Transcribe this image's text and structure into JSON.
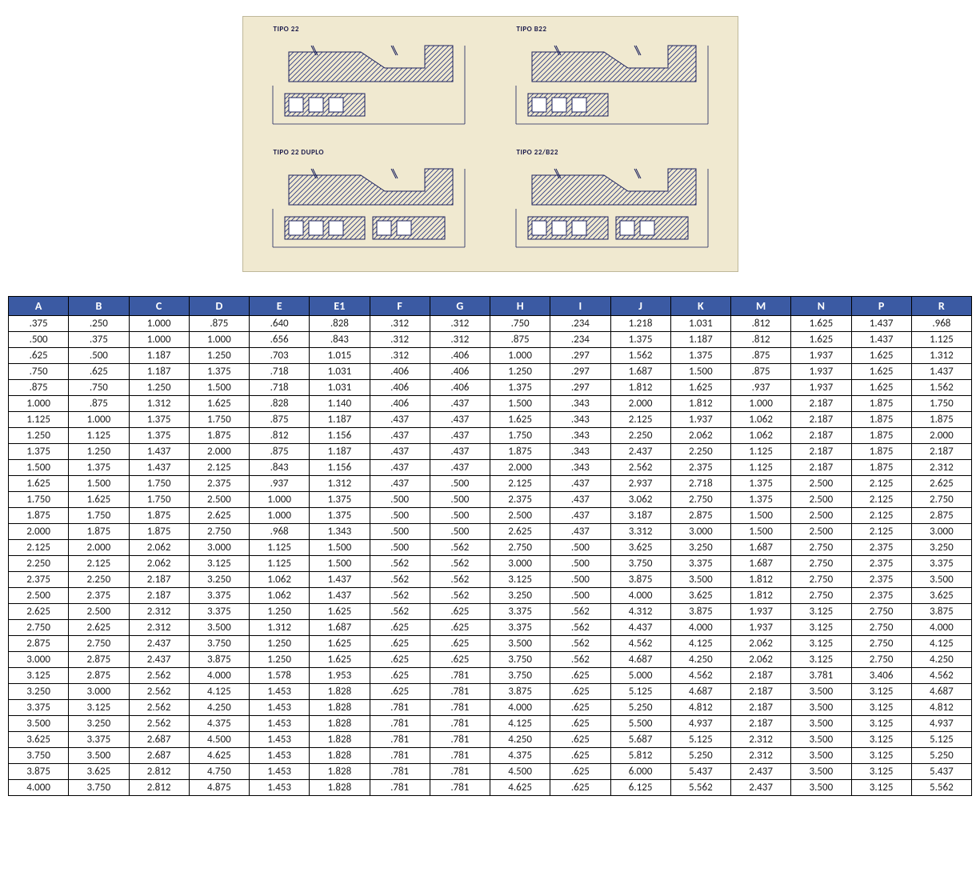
{
  "diagrams": {
    "labels": [
      "TIPO 22",
      "TIPO B22",
      "TIPO 22 DUPLO",
      "TIPO 22/B22"
    ],
    "background": "#f0e9d0",
    "stroke": "#1b215c",
    "hatch": "#2a3680"
  },
  "table": {
    "type": "table",
    "header_background": "#3b5aa3",
    "header_text_color": "#ffffff",
    "border_color": "#000000",
    "cell_background": "#ffffff",
    "font_size": 13,
    "header_font_size": 14,
    "columns": [
      "A",
      "B",
      "C",
      "D",
      "E",
      "E1",
      "F",
      "G",
      "H",
      "I",
      "J",
      "K",
      "M",
      "N",
      "P",
      "R"
    ],
    "rows": [
      [
        ".375",
        ".250",
        "1.000",
        ".875",
        ".640",
        ".828",
        ".312",
        ".312",
        ".750",
        ".234",
        "1.218",
        "1.031",
        ".812",
        "1.625",
        "1.437",
        ".968"
      ],
      [
        ".500",
        ".375",
        "1.000",
        "1.000",
        ".656",
        ".843",
        ".312",
        ".312",
        ".875",
        ".234",
        "1.375",
        "1.187",
        ".812",
        "1.625",
        "1.437",
        "1.125"
      ],
      [
        ".625",
        ".500",
        "1.187",
        "1.250",
        ".703",
        "1.015",
        ".312",
        ".406",
        "1.000",
        ".297",
        "1.562",
        "1.375",
        ".875",
        "1.937",
        "1.625",
        "1.312"
      ],
      [
        ".750",
        ".625",
        "1.187",
        "1.375",
        ".718",
        "1.031",
        ".406",
        ".406",
        "1.250",
        ".297",
        "1.687",
        "1.500",
        ".875",
        "1.937",
        "1.625",
        "1.437"
      ],
      [
        ".875",
        ".750",
        "1.250",
        "1.500",
        ".718",
        "1.031",
        ".406",
        ".406",
        "1.375",
        ".297",
        "1.812",
        "1.625",
        ".937",
        "1.937",
        "1.625",
        "1.562"
      ],
      [
        "1.000",
        ".875",
        "1.312",
        "1.625",
        ".828",
        "1.140",
        ".406",
        ".437",
        "1.500",
        ".343",
        "2.000",
        "1.812",
        "1.000",
        "2.187",
        "1.875",
        "1.750"
      ],
      [
        "1.125",
        "1.000",
        "1.375",
        "1.750",
        ".875",
        "1.187",
        ".437",
        ".437",
        "1.625",
        ".343",
        "2.125",
        "1.937",
        "1.062",
        "2.187",
        "1.875",
        "1.875"
      ],
      [
        "1.250",
        "1.125",
        "1.375",
        "1.875",
        ".812",
        "1.156",
        ".437",
        ".437",
        "1.750",
        ".343",
        "2.250",
        "2.062",
        "1.062",
        "2.187",
        "1.875",
        "2.000"
      ],
      [
        "1.375",
        "1.250",
        "1.437",
        "2.000",
        ".875",
        "1.187",
        ".437",
        ".437",
        "1.875",
        ".343",
        "2.437",
        "2.250",
        "1.125",
        "2.187",
        "1.875",
        "2.187"
      ],
      [
        "1.500",
        "1.375",
        "1.437",
        "2.125",
        ".843",
        "1.156",
        ".437",
        ".437",
        "2.000",
        ".343",
        "2.562",
        "2.375",
        "1.125",
        "2.187",
        "1.875",
        "2.312"
      ],
      [
        "1.625",
        "1.500",
        "1.750",
        "2.375",
        ".937",
        "1.312",
        ".437",
        ".500",
        "2.125",
        ".437",
        "2.937",
        "2.718",
        "1.375",
        "2.500",
        "2.125",
        "2.625"
      ],
      [
        "1.750",
        "1.625",
        "1.750",
        "2.500",
        "1.000",
        "1.375",
        ".500",
        ".500",
        "2.375",
        ".437",
        "3.062",
        "2.750",
        "1.375",
        "2.500",
        "2.125",
        "2.750"
      ],
      [
        "1.875",
        "1.750",
        "1.875",
        "2.625",
        "1.000",
        "1.375",
        ".500",
        ".500",
        "2.500",
        ".437",
        "3.187",
        "2.875",
        "1.500",
        "2.500",
        "2.125",
        "2.875"
      ],
      [
        "2.000",
        "1.875",
        "1.875",
        "2.750",
        ".968",
        "1.343",
        ".500",
        ".500",
        "2.625",
        ".437",
        "3.312",
        "3.000",
        "1.500",
        "2.500",
        "2.125",
        "3.000"
      ],
      [
        "2.125",
        "2.000",
        "2.062",
        "3.000",
        "1.125",
        "1.500",
        ".500",
        ".562",
        "2.750",
        ".500",
        "3.625",
        "3.250",
        "1.687",
        "2.750",
        "2.375",
        "3.250"
      ],
      [
        "2.250",
        "2.125",
        "2.062",
        "3.125",
        "1.125",
        "1.500",
        ".562",
        ".562",
        "3.000",
        ".500",
        "3.750",
        "3.375",
        "1.687",
        "2.750",
        "2.375",
        "3.375"
      ],
      [
        "2.375",
        "2.250",
        "2.187",
        "3.250",
        "1.062",
        "1.437",
        ".562",
        ".562",
        "3.125",
        ".500",
        "3.875",
        "3.500",
        "1.812",
        "2.750",
        "2.375",
        "3.500"
      ],
      [
        "2.500",
        "2.375",
        "2.187",
        "3.375",
        "1.062",
        "1.437",
        ".562",
        ".562",
        "3.250",
        ".500",
        "4.000",
        "3.625",
        "1.812",
        "2.750",
        "2.375",
        "3.625"
      ],
      [
        "2.625",
        "2.500",
        "2.312",
        "3.375",
        "1.250",
        "1.625",
        ".562",
        ".625",
        "3.375",
        ".562",
        "4.312",
        "3.875",
        "1.937",
        "3.125",
        "2.750",
        "3.875"
      ],
      [
        "2.750",
        "2.625",
        "2.312",
        "3.500",
        "1.312",
        "1.687",
        ".625",
        ".625",
        "3.375",
        ".562",
        "4.437",
        "4.000",
        "1.937",
        "3.125",
        "2.750",
        "4.000"
      ],
      [
        "2.875",
        "2.750",
        "2.437",
        "3.750",
        "1.250",
        "1.625",
        ".625",
        ".625",
        "3.500",
        ".562",
        "4.562",
        "4.125",
        "2.062",
        "3.125",
        "2.750",
        "4.125"
      ],
      [
        "3.000",
        "2.875",
        "2.437",
        "3.875",
        "1.250",
        "1.625",
        ".625",
        ".625",
        "3.750",
        ".562",
        "4.687",
        "4.250",
        "2.062",
        "3.125",
        "2.750",
        "4.250"
      ],
      [
        "3.125",
        "2.875",
        "2.562",
        "4.000",
        "1.578",
        "1.953",
        ".625",
        ".781",
        "3.750",
        ".625",
        "5.000",
        "4.562",
        "2.187",
        "3.781",
        "3.406",
        "4.562"
      ],
      [
        "3.250",
        "3.000",
        "2.562",
        "4.125",
        "1.453",
        "1.828",
        ".625",
        ".781",
        "3.875",
        ".625",
        "5.125",
        "4.687",
        "2.187",
        "3.500",
        "3.125",
        "4.687"
      ],
      [
        "3.375",
        "3.125",
        "2.562",
        "4.250",
        "1.453",
        "1.828",
        ".781",
        ".781",
        "4.000",
        ".625",
        "5.250",
        "4.812",
        "2.187",
        "3.500",
        "3.125",
        "4.812"
      ],
      [
        "3.500",
        "3.250",
        "2.562",
        "4.375",
        "1.453",
        "1.828",
        ".781",
        ".781",
        "4.125",
        ".625",
        "5.500",
        "4.937",
        "2.187",
        "3.500",
        "3.125",
        "4.937"
      ],
      [
        "3.625",
        "3.375",
        "2.687",
        "4.500",
        "1.453",
        "1.828",
        ".781",
        ".781",
        "4.250",
        ".625",
        "5.687",
        "5.125",
        "2.312",
        "3.500",
        "3.125",
        "5.125"
      ],
      [
        "3.750",
        "3.500",
        "2.687",
        "4.625",
        "1.453",
        "1.828",
        ".781",
        ".781",
        "4.375",
        ".625",
        "5.812",
        "5.250",
        "2.312",
        "3.500",
        "3.125",
        "5.250"
      ],
      [
        "3.875",
        "3.625",
        "2.812",
        "4.750",
        "1.453",
        "1.828",
        ".781",
        ".781",
        "4.500",
        ".625",
        "6.000",
        "5.437",
        "2.437",
        "3.500",
        "3.125",
        "5.437"
      ],
      [
        "4.000",
        "3.750",
        "2.812",
        "4.875",
        "1.453",
        "1.828",
        ".781",
        ".781",
        "4.625",
        ".625",
        "6.125",
        "5.562",
        "2.437",
        "3.500",
        "3.125",
        "5.562"
      ]
    ]
  }
}
